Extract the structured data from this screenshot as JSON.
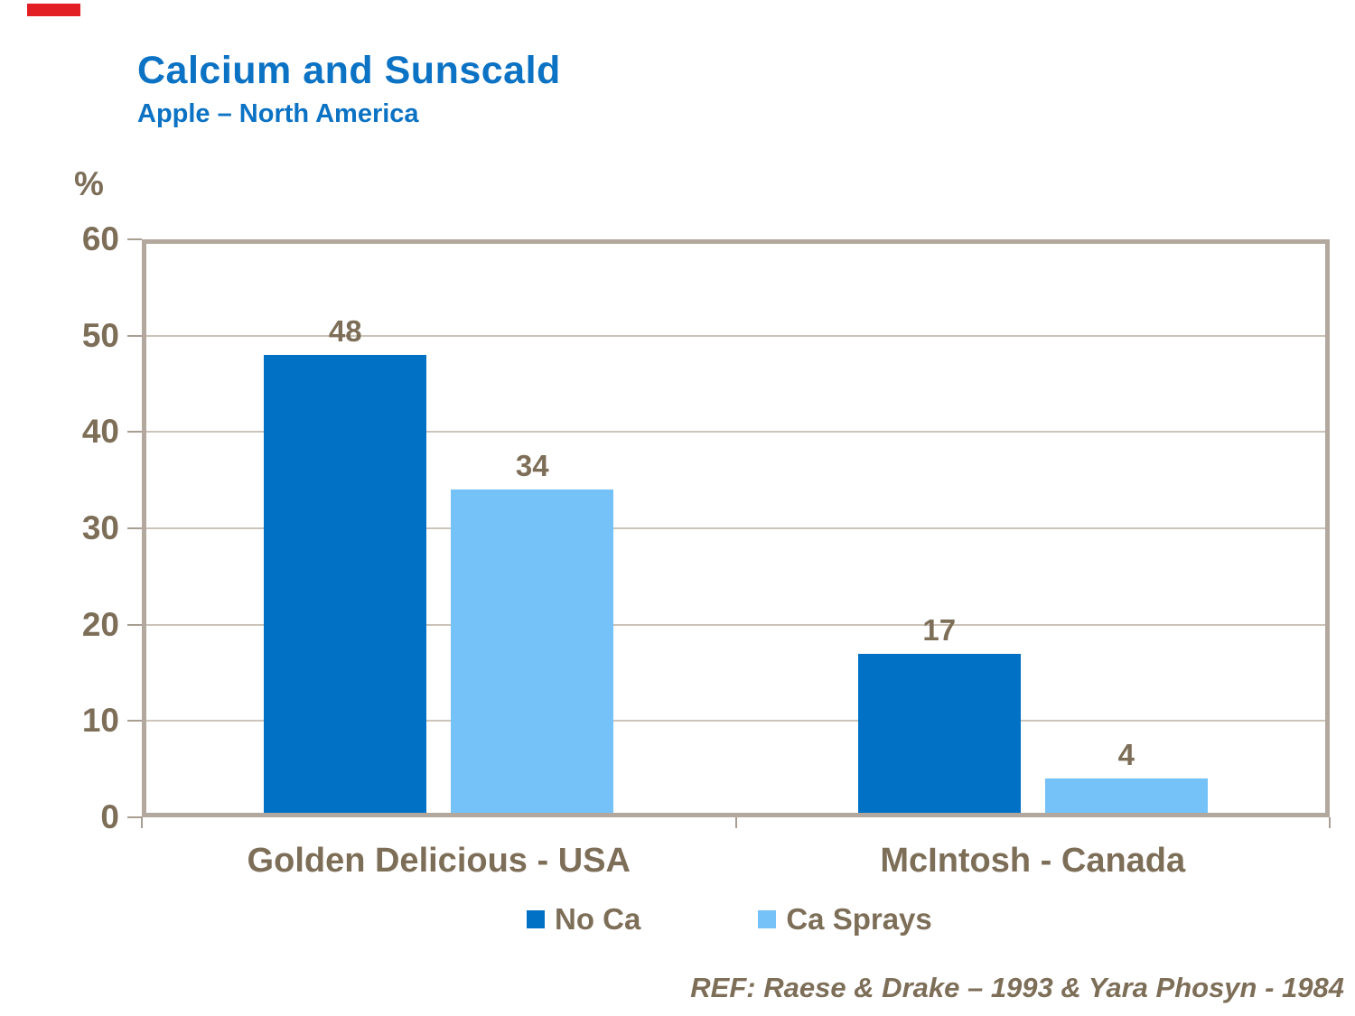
{
  "decoration": {
    "red_mark_color": "#E31F26"
  },
  "header": {
    "title": "Calcium and Sunscald",
    "subtitle": "Apple – North America",
    "title_color": "#0B72C4"
  },
  "footer": {
    "reference": "REF: Raese & Drake – 1993 & Yara Phosyn - 1984"
  },
  "chart_data": {
    "type": "bar",
    "title": "Calcium and Sunscald",
    "subtitle": "Apple – North America",
    "unit_label": "%",
    "categories": [
      "Golden Delicious - USA",
      "McIntosh - Canada"
    ],
    "series": [
      {
        "name": "No Ca",
        "color": "#0071C5",
        "values": [
          48,
          17
        ]
      },
      {
        "name": "Ca Sprays",
        "color": "#74C2F8",
        "values": [
          34,
          4
        ]
      }
    ],
    "ylim": [
      0,
      60
    ],
    "yticks": [
      0,
      10,
      20,
      30,
      40,
      50,
      60
    ],
    "grid": true,
    "value_labels": true,
    "legend_position": "bottom",
    "colors": {
      "text_brown": "#7D6E58",
      "frame": "#B2A89D",
      "gridline": "#CCC4B9",
      "tick": "#A89E92",
      "background": "#FFFFFF"
    }
  }
}
